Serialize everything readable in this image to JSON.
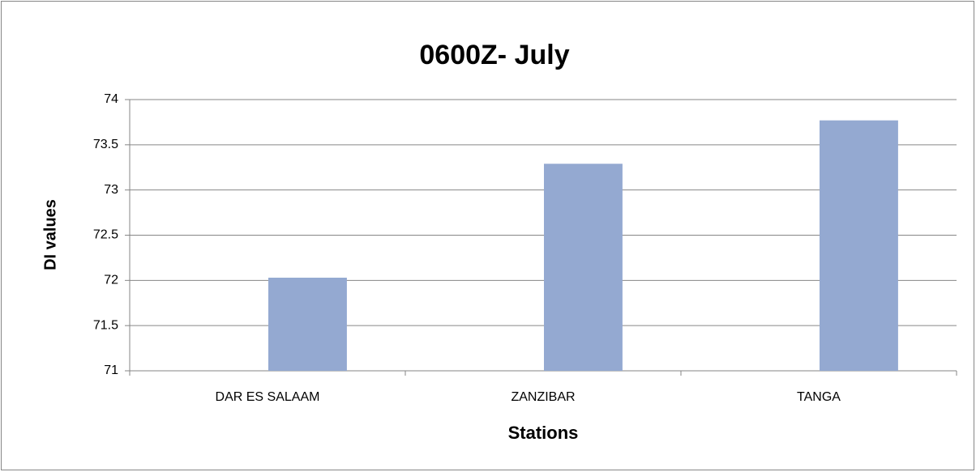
{
  "chart_data": {
    "type": "bar",
    "title": "0600Z- July",
    "x_label": "Stations",
    "y_label": "DI values",
    "categories": [
      "DAR ES SALAAM",
      "ZANZIBAR",
      "TANGA"
    ],
    "values": [
      72.03,
      73.29,
      73.77
    ],
    "color": "#94a9d1",
    "ylim": [
      71,
      74
    ],
    "yticks": [
      71,
      71.5,
      72,
      72.5,
      73,
      73.5,
      74
    ],
    "grid": true
  }
}
